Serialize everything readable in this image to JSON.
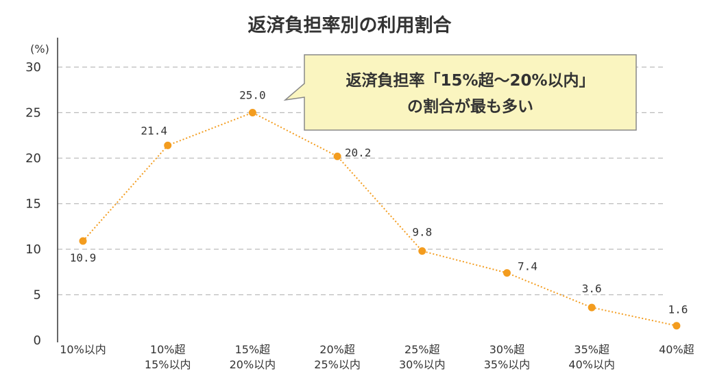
{
  "chart_data": {
    "type": "line",
    "title": "返済負担率別の利用割合",
    "ylabel": "(%)",
    "ylim": [
      0,
      30
    ],
    "yticks": [
      0,
      5,
      10,
      15,
      20,
      25,
      30
    ],
    "grid": true,
    "categories": [
      [
        "10%以内"
      ],
      [
        "10%超",
        "15%以内"
      ],
      [
        "15%超",
        "20%以内"
      ],
      [
        "20%超",
        "25%以内"
      ],
      [
        "25%超",
        "30%以内"
      ],
      [
        "30%超",
        "35%以内"
      ],
      [
        "35%超",
        "40%以内"
      ],
      [
        "40%超"
      ]
    ],
    "series": [
      {
        "values": [
          10.9,
          21.4,
          25.0,
          20.2,
          9.8,
          7.4,
          3.6,
          1.6
        ],
        "labels": [
          "10.9",
          "21.4",
          "25.0",
          "20.2",
          "9.8",
          "7.4",
          "3.6",
          "1.6"
        ]
      }
    ],
    "callout": {
      "lines": [
        "返済負担率「15%超～20%以内」",
        "の割合が最も多い"
      ],
      "points_to": "15%超 20%以内"
    },
    "colors": {
      "line": "#F39C1E",
      "grid": "#BBBBBB",
      "axis": "#333333",
      "callout_fill": "#FAF5C0",
      "callout_border": "#888888"
    }
  }
}
